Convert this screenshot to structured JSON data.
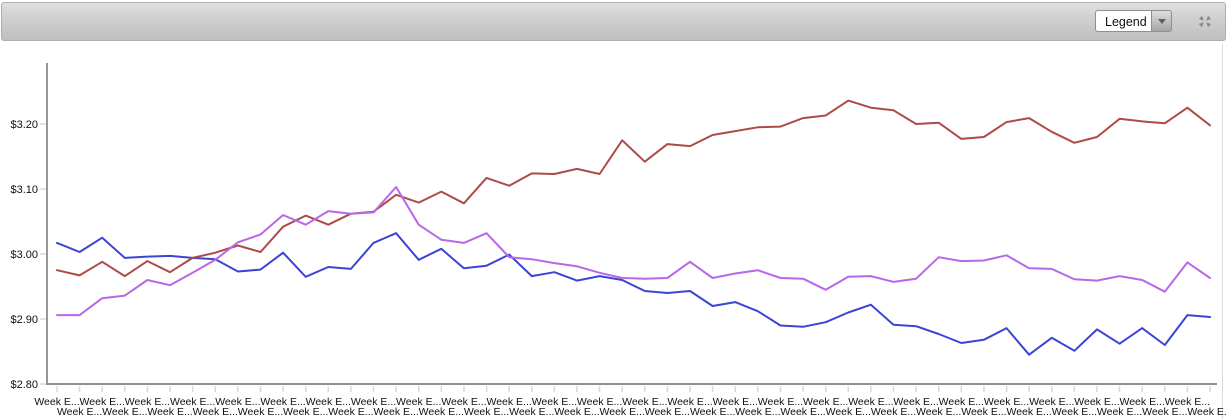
{
  "toolbar": {
    "legend_label": "Legend"
  },
  "chart_data": {
    "type": "line",
    "title": "",
    "xlabel": "",
    "ylabel": "",
    "grid": false,
    "legend_position": "collapsed-toolbar-dropdown",
    "x_axis": {
      "tick_label": "Week E...",
      "num_points": 52,
      "label_rows": 2
    },
    "y_axis": {
      "ylim": [
        2.8,
        3.29
      ],
      "tick_prefix": "$",
      "ticks": [
        {
          "label": "$2.80",
          "value": 2.8
        },
        {
          "label": "$2.90",
          "value": 2.9
        },
        {
          "label": "$3.00",
          "value": 3.0
        },
        {
          "label": "$3.10",
          "value": 3.1
        },
        {
          "label": "$3.20",
          "value": 3.2
        }
      ]
    },
    "series": [
      {
        "name": "blue",
        "color": "#3a45d6",
        "values": [
          3.017,
          3.003,
          3.025,
          2.994,
          2.996,
          2.997,
          2.994,
          2.992,
          2.973,
          2.976,
          3.002,
          2.965,
          2.98,
          2.977,
          3.017,
          3.032,
          2.991,
          3.008,
          2.978,
          2.982,
          2.999,
          2.966,
          2.972,
          2.959,
          2.966,
          2.96,
          2.943,
          2.94,
          2.943,
          2.92,
          2.926,
          2.912,
          2.89,
          2.888,
          2.895,
          2.91,
          2.922,
          2.891,
          2.889,
          2.877,
          2.863,
          2.868,
          2.886,
          2.845,
          2.871,
          2.851,
          2.884,
          2.862,
          2.886,
          2.86,
          2.906,
          2.903
        ]
      },
      {
        "name": "red",
        "color": "#ad4b46",
        "values": [
          2.975,
          2.967,
          2.988,
          2.966,
          2.989,
          2.972,
          2.994,
          3.002,
          3.013,
          3.003,
          3.042,
          3.059,
          3.045,
          3.062,
          3.065,
          3.091,
          3.079,
          3.096,
          3.078,
          3.117,
          3.105,
          3.124,
          3.123,
          3.131,
          3.123,
          3.175,
          3.142,
          3.169,
          3.166,
          3.183,
          3.189,
          3.195,
          3.196,
          3.209,
          3.213,
          3.236,
          3.225,
          3.221,
          3.2,
          3.202,
          3.177,
          3.18,
          3.203,
          3.209,
          3.188,
          3.171,
          3.18,
          3.208,
          3.204,
          3.201,
          3.225,
          3.198
        ]
      },
      {
        "name": "purple",
        "color": "#b867e8",
        "values": [
          2.906,
          2.906,
          2.932,
          2.936,
          2.96,
          2.952,
          2.971,
          2.991,
          3.018,
          3.03,
          3.06,
          3.045,
          3.066,
          3.062,
          3.064,
          3.103,
          3.045,
          3.022,
          3.017,
          3.032,
          2.995,
          2.992,
          2.986,
          2.981,
          2.971,
          2.963,
          2.962,
          2.963,
          2.988,
          2.963,
          2.97,
          2.975,
          2.963,
          2.962,
          2.945,
          2.965,
          2.966,
          2.957,
          2.962,
          2.995,
          2.989,
          2.99,
          2.998,
          2.978,
          2.977,
          2.961,
          2.959,
          2.966,
          2.96,
          2.942,
          2.987,
          2.963
        ]
      }
    ]
  }
}
